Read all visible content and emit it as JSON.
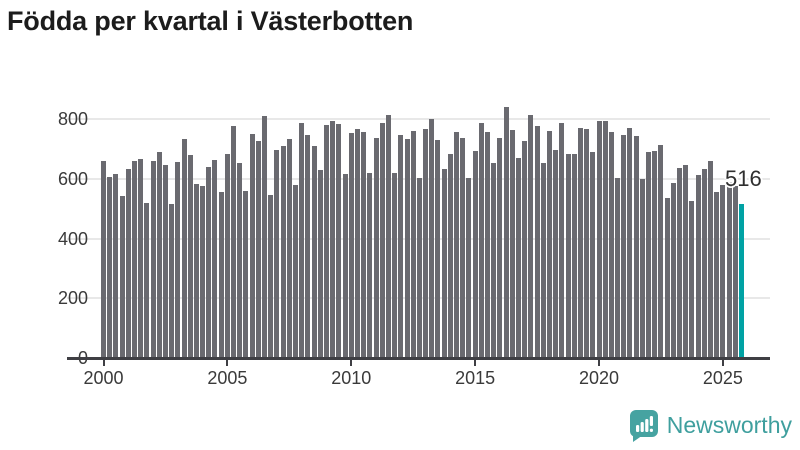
{
  "title": "Födda per kvartal i Västerbotten",
  "chart_data": {
    "type": "bar",
    "title": "Födda per kvartal i Västerbotten",
    "xlabel": "",
    "ylabel": "",
    "x_start": "2000-Q1",
    "x_end": "2025-Q4",
    "frequency": "quarterly",
    "x_tick_labels": [
      "2000",
      "2005",
      "2010",
      "2015",
      "2020",
      "2025"
    ],
    "y_ticks": [
      0,
      200,
      400,
      600,
      800
    ],
    "ylim": [
      0,
      870
    ],
    "grid": "horizontal",
    "legend": "none",
    "bar_color": "#6a6a70",
    "series": [
      {
        "name": "Födda",
        "values": [
          660,
          607,
          615,
          543,
          633,
          660,
          665,
          518,
          658,
          688,
          647,
          516,
          655,
          734,
          680,
          583,
          576,
          640,
          663,
          555,
          684,
          778,
          654,
          559,
          750,
          725,
          810,
          546,
          695,
          710,
          732,
          580,
          785,
          746,
          711,
          630,
          780,
          794,
          782,
          616,
          754,
          767,
          757,
          620,
          736,
          786,
          814,
          619,
          748,
          732,
          760,
          602,
          767,
          801,
          729,
          632,
          683,
          757,
          737,
          602,
          692,
          788,
          758,
          652,
          738,
          840,
          764,
          668,
          725,
          814,
          778,
          652,
          760,
          697,
          785,
          682,
          682,
          770,
          766,
          690,
          794,
          794,
          755,
          604,
          747,
          769,
          744,
          599,
          688,
          693,
          712,
          535,
          587,
          637,
          647,
          524,
          614,
          634,
          660,
          557,
          580,
          590,
          575,
          516
        ]
      }
    ],
    "highlight": {
      "index": 103,
      "value": 516,
      "label": "516",
      "color": "#00a2a4"
    }
  },
  "colors": {
    "bar": "#6a6a70",
    "highlight": "#00a2a4",
    "axis": "#3f3f44",
    "grid": "#e8e8e8",
    "text": "#3a3a3a",
    "brand_teal": "#3f9f9e"
  },
  "footer": {
    "brand": "Newsworthy"
  }
}
